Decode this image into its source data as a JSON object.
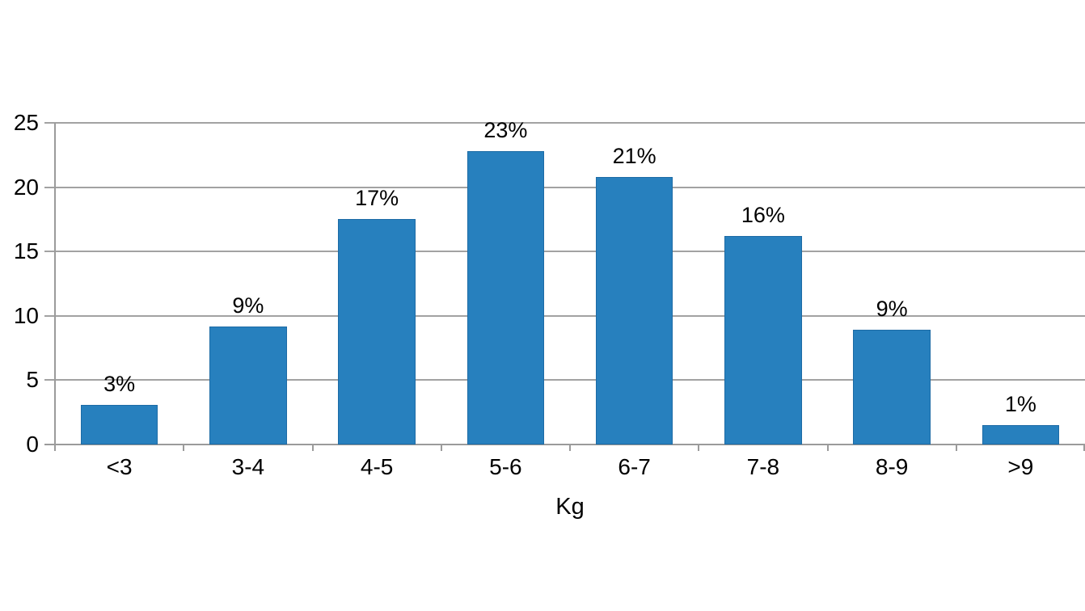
{
  "chart_data": {
    "type": "bar",
    "title": "",
    "xlabel": "Kg",
    "ylabel": "",
    "categories": [
      "<3",
      "3-4",
      "4-5",
      "5-6",
      "6-7",
      "7-8",
      "8-9",
      ">9"
    ],
    "values": [
      3.1,
      9.2,
      17.5,
      22.8,
      20.8,
      16.2,
      8.9,
      1.5
    ],
    "bar_labels": [
      "3%",
      "9%",
      "17%",
      "23%",
      "21%",
      "16%",
      "9%",
      "1%"
    ],
    "ylim": [
      0,
      25
    ],
    "yticks": [
      0,
      5,
      10,
      15,
      20,
      25
    ],
    "grid": true,
    "legend": "none",
    "colors": {
      "bar_fill": "#2780be",
      "bar_border": "#1d6ba5",
      "gridline": "#a2a2a2",
      "axis_line": "#9b9b9b",
      "text": "#000000",
      "background": "#ffffff"
    }
  }
}
